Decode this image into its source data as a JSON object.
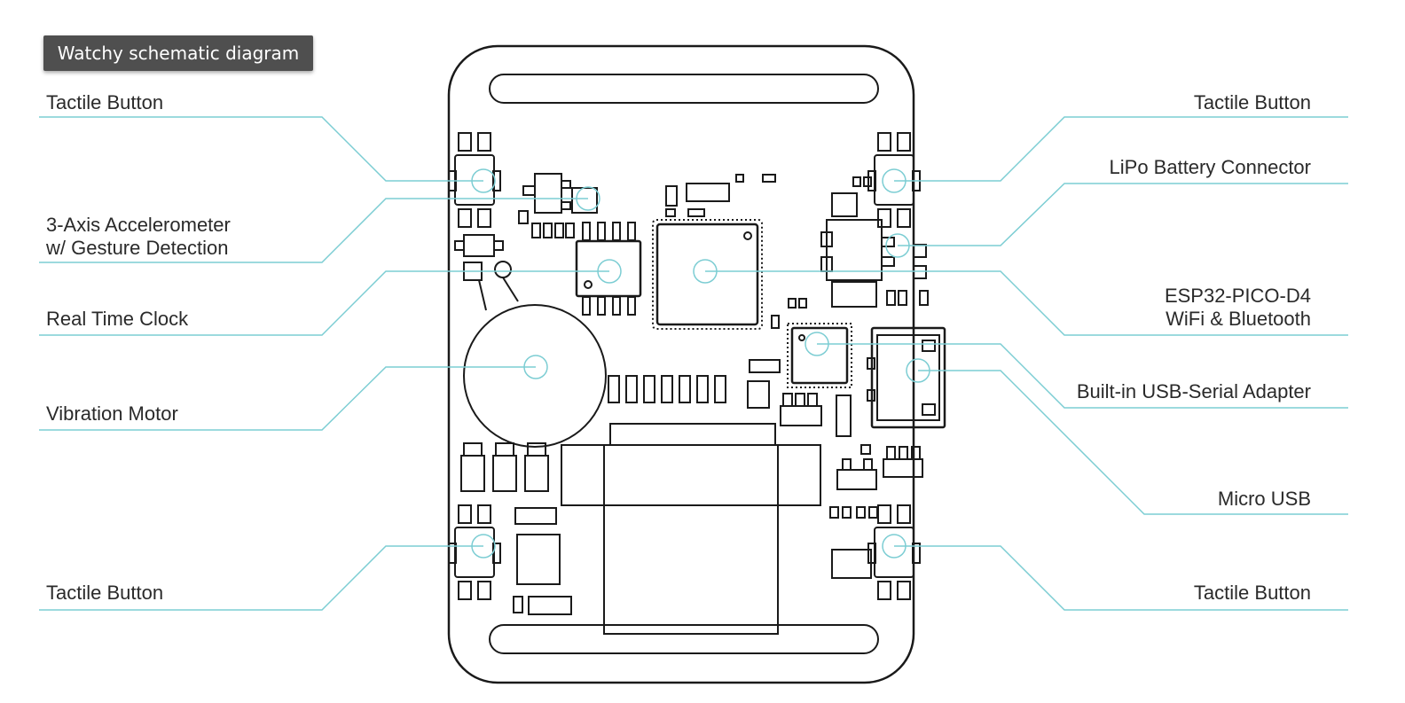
{
  "title": "Watchy schematic diagram",
  "colors": {
    "leader": "#7ccdd3",
    "outline": "#1a1a1a",
    "badge_bg": "#4f4f4f",
    "text": "#2a2a2a"
  },
  "labels": {
    "btn_top_left": "Tactile Button",
    "accel_l1": "3-Axis Accelerometer",
    "accel_l2": "w/ Gesture Detection",
    "rtc": "Real Time Clock",
    "motor": "Vibration Motor",
    "btn_bottom_left": "Tactile Button",
    "btn_top_right": "Tactile Button",
    "lipo": "LiPo Battery Connector",
    "esp_l1": "ESP32-PICO-D4",
    "esp_l2": "WiFi & Bluetooth",
    "usb_serial": "Built-in USB-Serial Adapter",
    "micro_usb": "Micro USB",
    "btn_bottom_right": "Tactile Button"
  }
}
